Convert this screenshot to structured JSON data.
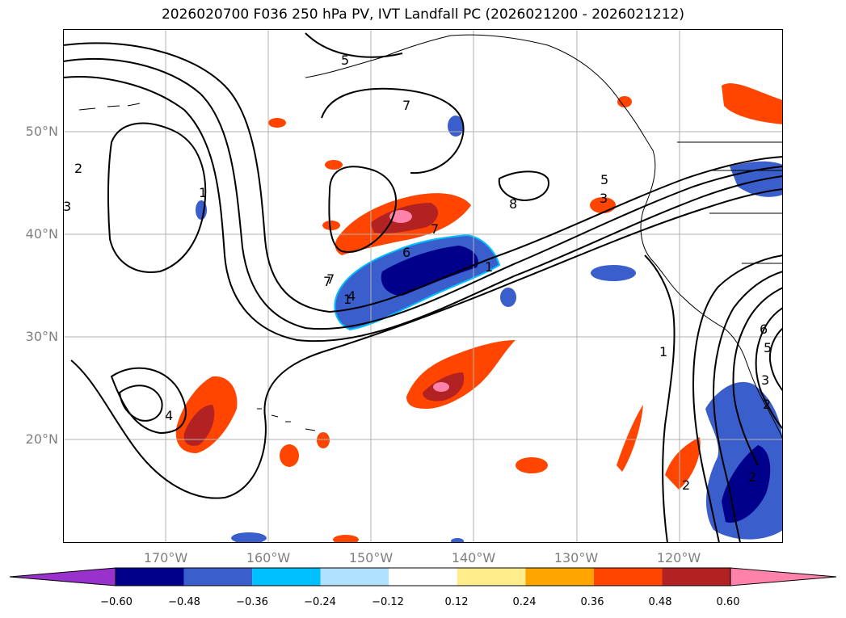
{
  "title": "2026020700 F036 250 hPa PV, IVT Landfall PC (2026021200 - 2026021212)",
  "map": {
    "projection": "lat-lon",
    "lon_range": [
      "180°W",
      "110°W"
    ],
    "lat_range": [
      "10°N",
      "60°N"
    ],
    "lat_ticks": [
      "50°N",
      "40°N",
      "30°N",
      "20°N"
    ],
    "lon_ticks": [
      "170°W",
      "160°W",
      "150°W",
      "140°W",
      "130°W",
      "120°W"
    ],
    "grid": true,
    "contour_labels": [
      "5",
      "7",
      "7",
      "8",
      "5",
      "3",
      "1",
      "7",
      "6",
      "1",
      "4",
      "7",
      "2",
      "1",
      "3",
      "2",
      "4",
      "1",
      "6",
      "5",
      "3",
      "2",
      "2"
    ]
  },
  "colorbar": {
    "tick_labels": [
      "−0.60",
      "−0.48",
      "−0.36",
      "−0.24",
      "−0.12",
      "0.12",
      "0.24",
      "0.36",
      "0.48",
      "0.60"
    ],
    "colors": [
      "#9932CC",
      "#00008B",
      "#3A5FCD",
      "#00BFFF",
      "#B0E2FF",
      "#FFFFFF",
      "#FFEC8B",
      "#FFA500",
      "#FF4500",
      "#B22222",
      "#FF82AB"
    ],
    "extend": "both"
  }
}
